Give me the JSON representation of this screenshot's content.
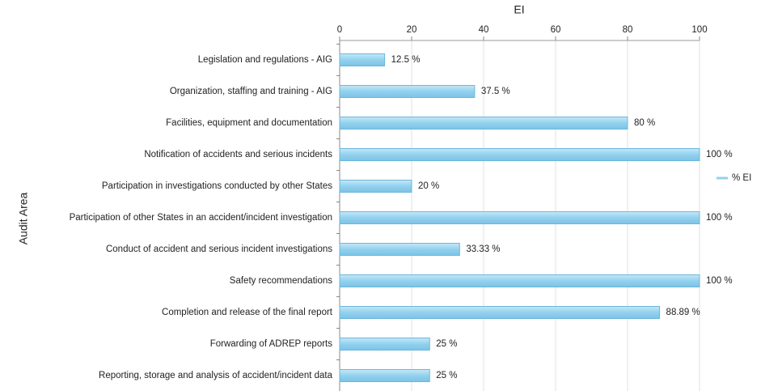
{
  "chart_data": {
    "type": "bar",
    "orientation": "horizontal",
    "x_axis_title": "EI",
    "y_axis_title": "Audit Area",
    "categories": [
      "Legislation and regulations - AIG",
      "Organization, staffing and training - AIG",
      "Facilities, equipment and documentation",
      "Notification of accidents and serious incidents",
      "Participation in investigations conducted by other States",
      "Participation of other States in an accident/incident investigation",
      "Conduct of accident and serious incident investigations",
      "Safety recommendations",
      "Completion and release of the final report",
      "Forwarding of ADREP reports",
      "Reporting, storage and analysis of accident/incident data"
    ],
    "series": [
      {
        "name": "% EI",
        "color": "#92d1ee",
        "values": [
          12.5,
          37.5,
          80,
          100,
          20,
          100,
          33.33,
          100,
          88.89,
          25,
          25
        ],
        "value_labels": [
          "12.5 %",
          "37.5 %",
          "80 %",
          "100 %",
          "20 %",
          "100 %",
          "33.33 %",
          "100 %",
          "88.89 %",
          "25 %",
          "25 %"
        ]
      }
    ],
    "xlim": [
      0,
      100
    ],
    "xticks": [
      0,
      20,
      40,
      60,
      80,
      100
    ],
    "grid": true,
    "legend": "right"
  }
}
